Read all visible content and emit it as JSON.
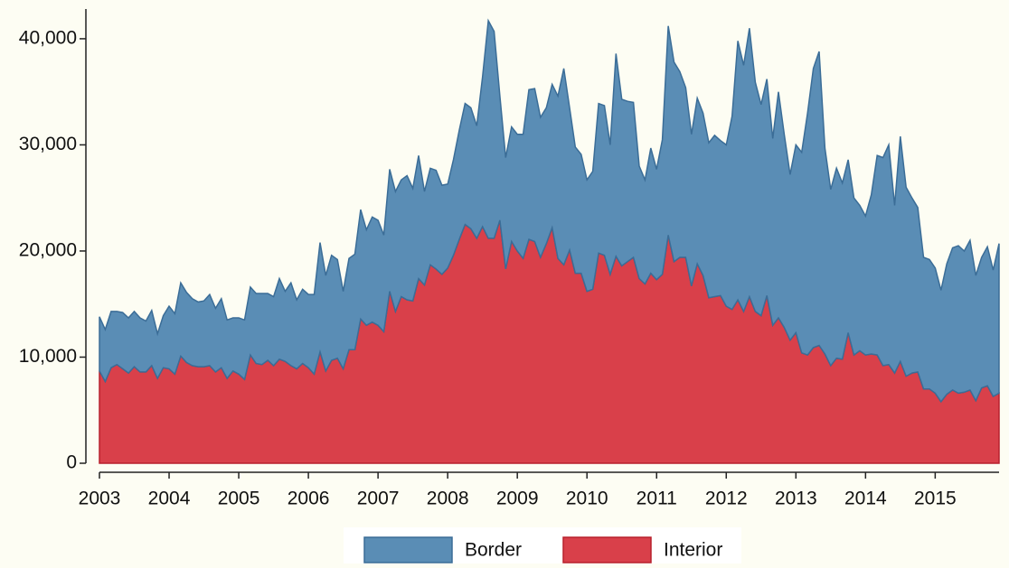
{
  "chart_data": {
    "type": "stacked_area",
    "x": [
      2003,
      2003.083,
      2003.167,
      2003.25,
      2003.333,
      2003.417,
      2003.5,
      2003.583,
      2003.667,
      2003.75,
      2003.833,
      2003.917,
      2004,
      2004.083,
      2004.167,
      2004.25,
      2004.333,
      2004.417,
      2004.5,
      2004.583,
      2004.667,
      2004.75,
      2004.833,
      2004.917,
      2005,
      2005.083,
      2005.167,
      2005.25,
      2005.333,
      2005.417,
      2005.5,
      2005.583,
      2005.667,
      2005.75,
      2005.833,
      2005.917,
      2006,
      2006.083,
      2006.167,
      2006.25,
      2006.333,
      2006.417,
      2006.5,
      2006.583,
      2006.667,
      2006.75,
      2006.833,
      2006.917,
      2007,
      2007.083,
      2007.167,
      2007.25,
      2007.333,
      2007.417,
      2007.5,
      2007.583,
      2007.667,
      2007.75,
      2007.833,
      2007.917,
      2008,
      2008.083,
      2008.167,
      2008.25,
      2008.333,
      2008.417,
      2008.5,
      2008.583,
      2008.667,
      2008.75,
      2008.833,
      2008.917,
      2009,
      2009.083,
      2009.167,
      2009.25,
      2009.333,
      2009.417,
      2009.5,
      2009.583,
      2009.667,
      2009.75,
      2009.833,
      2009.917,
      2010,
      2010.083,
      2010.167,
      2010.25,
      2010.333,
      2010.417,
      2010.5,
      2010.583,
      2010.667,
      2010.75,
      2010.833,
      2010.917,
      2011,
      2011.083,
      2011.167,
      2011.25,
      2011.333,
      2011.417,
      2011.5,
      2011.583,
      2011.667,
      2011.75,
      2011.833,
      2011.917,
      2012,
      2012.083,
      2012.167,
      2012.25,
      2012.333,
      2012.417,
      2012.5,
      2012.583,
      2012.667,
      2012.75,
      2012.833,
      2012.917,
      2013,
      2013.083,
      2013.167,
      2013.25,
      2013.333,
      2013.417,
      2013.5,
      2013.583,
      2013.667,
      2013.75,
      2013.833,
      2013.917,
      2014,
      2014.083,
      2014.167,
      2014.25,
      2014.333,
      2014.417,
      2014.5,
      2014.583,
      2014.667,
      2014.75,
      2014.833,
      2014.917,
      2015,
      2015.083,
      2015.167,
      2015.25,
      2015.333,
      2015.417,
      2015.5,
      2015.583,
      2015.667,
      2015.75,
      2015.833,
      2015.917
    ],
    "series": [
      {
        "name": "Border",
        "color": "#5a8db5",
        "values": [
          5100,
          4900,
          5300,
          5000,
          5300,
          5200,
          5200,
          5100,
          4800,
          5200,
          4200,
          4900,
          5900,
          5700,
          6900,
          6600,
          6300,
          6100,
          6200,
          6700,
          6000,
          6500,
          5500,
          5000,
          5300,
          5600,
          6400,
          6600,
          6700,
          6300,
          6500,
          7600,
          6600,
          7800,
          6500,
          7000,
          6900,
          7500,
          10300,
          9000,
          9900,
          9300,
          7300,
          8600,
          9000,
          10300,
          9000,
          9900,
          9900,
          9100,
          11500,
          11300,
          11000,
          11700,
          10600,
          11600,
          8800,
          9100,
          9300,
          8400,
          7900,
          9000,
          10300,
          11400,
          11400,
          10600,
          14100,
          20500,
          19500,
          11700,
          10500,
          10800,
          11000,
          11700,
          14100,
          14400,
          13200,
          12800,
          13500,
          15300,
          18500,
          13400,
          11900,
          11200,
          10500,
          11100,
          14100,
          14100,
          12200,
          19100,
          15700,
          15100,
          14600,
          10600,
          9800,
          11800,
          10400,
          12700,
          19700,
          18800,
          17500,
          16000,
          14300,
          15600,
          15300,
          14600,
          15200,
          14600,
          15200,
          18200,
          24400,
          23200,
          25300,
          21600,
          19900,
          20400,
          17600,
          21300,
          18200,
          15600,
          17700,
          18900,
          22800,
          26300,
          27700,
          19400,
          16600,
          17900,
          16600,
          16300,
          14800,
          13700,
          13100,
          15000,
          18800,
          19600,
          20700,
          15800,
          21200,
          17800,
          16500,
          15500,
          12400,
          12200,
          11800,
          10500,
          12300,
          13400,
          13900,
          13300,
          14100,
          11800,
          12300,
          13100,
          11900,
          14100
        ]
      },
      {
        "name": "Interior",
        "color": "#d9404a",
        "values": [
          8700,
          7700,
          9000,
          9300,
          8900,
          8500,
          9100,
          8600,
          8600,
          9200,
          8000,
          9000,
          8900,
          8400,
          10100,
          9500,
          9200,
          9100,
          9100,
          9200,
          8600,
          9000,
          8000,
          8700,
          8400,
          7900,
          10200,
          9400,
          9300,
          9700,
          9200,
          9800,
          9600,
          9200,
          8900,
          9400,
          9000,
          8400,
          10500,
          8700,
          9700,
          9900,
          8900,
          10700,
          10700,
          13600,
          13000,
          13300,
          13000,
          12400,
          16200,
          14300,
          15700,
          15400,
          15300,
          17400,
          16800,
          18700,
          18300,
          17800,
          18400,
          19600,
          21100,
          22500,
          22100,
          21200,
          22300,
          21200,
          21200,
          22900,
          18300,
          20900,
          20000,
          19300,
          21100,
          20900,
          19400,
          20700,
          22200,
          19300,
          18700,
          20100,
          17900,
          17900,
          16200,
          16400,
          19800,
          19600,
          17800,
          19500,
          18600,
          19000,
          19400,
          17400,
          16900,
          17900,
          17300,
          17800,
          21500,
          19000,
          19400,
          19400,
          16700,
          18800,
          17700,
          15600,
          15700,
          15800,
          14800,
          14500,
          15400,
          14300,
          15700,
          14300,
          13900,
          15800,
          13000,
          13700,
          12800,
          11600,
          12300,
          10400,
          10200,
          10900,
          11100,
          10300,
          9200,
          9900,
          9800,
          12300,
          10200,
          10600,
          10200,
          10300,
          10200,
          9200,
          9300,
          8500,
          9600,
          8200,
          8500,
          8600,
          7000,
          7000,
          6600,
          5800,
          6500,
          6900,
          6600,
          6700,
          6900,
          5900,
          7100,
          7300,
          6300,
          6600
        ]
      }
    ],
    "xlim": [
      2003,
      2015.917
    ],
    "xticks": [
      2003,
      2004,
      2005,
      2006,
      2007,
      2008,
      2009,
      2010,
      2011,
      2012,
      2013,
      2014,
      2015
    ],
    "ylim": [
      0,
      42800
    ],
    "yticks": [
      0,
      {
        "value": 10000,
        "label": "10,000"
      },
      {
        "value": 20000,
        "label": "20,000"
      },
      {
        "value": 30000,
        "label": "30,000"
      },
      {
        "value": 40000,
        "label": "40,000"
      }
    ],
    "legend": "bottom"
  }
}
